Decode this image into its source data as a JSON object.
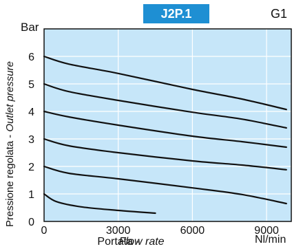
{
  "header": {
    "badge": "J2P.1",
    "tag": "G1"
  },
  "chart_data": {
    "type": "line",
    "title": "J2P.1",
    "xlabel": "Portata - Flow rate",
    "xlabel_parts": [
      "Portata - ",
      "Flow rate"
    ],
    "ylabel": "Pressione regolata - Outlet pressure",
    "ylabel_parts": [
      "Pressione regolata - ",
      "Outlet pressure"
    ],
    "x_unit": "Nl/min",
    "y_unit": "Bar",
    "xlim": [
      0,
      10000
    ],
    "ylim": [
      0,
      7
    ],
    "x_ticks": [
      0,
      3000,
      6000,
      9000
    ],
    "y_ticks": [
      0,
      1,
      2,
      3,
      4,
      5,
      6
    ],
    "grid": true,
    "colors": {
      "plot_bg": "#c6e6f9",
      "grid": "#ffffff",
      "line": "#111111",
      "badge": "#1e8fd3"
    },
    "series": [
      {
        "x": [
          0,
          500,
          1500,
          3000,
          4500
        ],
        "y": [
          1.0,
          0.72,
          0.53,
          0.4,
          0.3
        ]
      },
      {
        "x": [
          0,
          1000,
          3000,
          6000,
          8000,
          9800
        ],
        "y": [
          2.0,
          1.75,
          1.55,
          1.22,
          0.98,
          0.65
        ]
      },
      {
        "x": [
          0,
          1000,
          3000,
          6000,
          8000,
          9800
        ],
        "y": [
          3.0,
          2.75,
          2.5,
          2.2,
          2.05,
          1.88
        ]
      },
      {
        "x": [
          0,
          1000,
          3000,
          6000,
          8000,
          9800
        ],
        "y": [
          4.0,
          3.8,
          3.5,
          3.1,
          2.9,
          2.7
        ]
      },
      {
        "x": [
          0,
          1000,
          3000,
          6000,
          8000,
          9800
        ],
        "y": [
          5.0,
          4.72,
          4.4,
          3.97,
          3.72,
          3.4
        ]
      },
      {
        "x": [
          0,
          1000,
          3000,
          6000,
          8000,
          9800
        ],
        "y": [
          6.0,
          5.72,
          5.38,
          4.8,
          4.45,
          4.07
        ]
      }
    ]
  }
}
